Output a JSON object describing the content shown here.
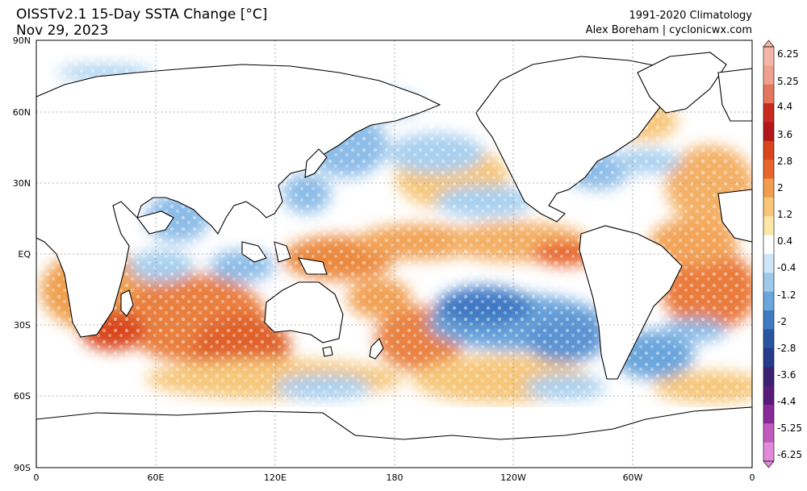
{
  "title": {
    "line1": "OISSTv2.1 15-Day SSTA Change [°C]",
    "line2": "Nov 29, 2023"
  },
  "credit": {
    "line1": "1991-2020 Climatology",
    "line2": "Alex Boreham | cyclonicwx.com"
  },
  "axes": {
    "lat_labels": [
      "90N",
      "60N",
      "30N",
      "EQ",
      "30S",
      "60S",
      "90S"
    ],
    "lon_labels": [
      "0",
      "60E",
      "120E",
      "180",
      "120W",
      "60W",
      "0"
    ]
  },
  "colorbar": {
    "labels": [
      "6.25",
      "5.25",
      "4.4",
      "3.6",
      "2.8",
      "2",
      "1.2",
      "0.4",
      "-0.4",
      "-1.2",
      "-2",
      "-2.8",
      "-3.6",
      "-4.4",
      "-5.25",
      "-6.25"
    ],
    "colors": [
      "#f4b6a8",
      "#efa08e",
      "#e4765e",
      "#c92b1e",
      "#b3171a",
      "#d9461b",
      "#e8642a",
      "#f29d4d",
      "#f7c679",
      "#fde6a6",
      "#ffffff",
      "#cfe6f7",
      "#9cc9ec",
      "#6aa5dc",
      "#3f7ac4",
      "#2a55a3",
      "#243c8a",
      "#3b2272",
      "#5a1a7a",
      "#8a2a9a",
      "#c25bbd",
      "#e08ad8"
    ]
  }
}
